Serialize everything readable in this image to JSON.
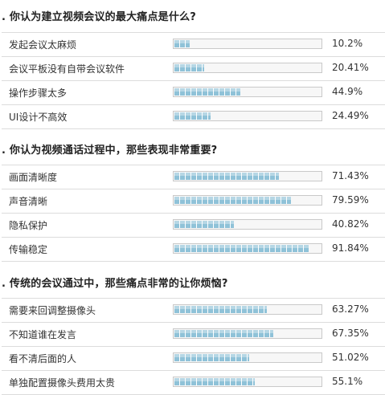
{
  "questions": [
    {
      "title": ". 你认为建立视频会议的最大痛点是什么?",
      "options": [
        {
          "label": "发起会议太麻烦",
          "percent_text": "10.2%",
          "percent": 10.2
        },
        {
          "label": "会议平板没有自带会议软件",
          "percent_text": "20.41%",
          "percent": 20.41
        },
        {
          "label": "操作步骤太多",
          "percent_text": "44.9%",
          "percent": 44.9
        },
        {
          "label": "UI设计不高效",
          "percent_text": "24.49%",
          "percent": 24.49
        }
      ]
    },
    {
      "title": ". 你认为视频通话过程中，那些表现非常重要?",
      "options": [
        {
          "label": "画面清晰度",
          "percent_text": "71.43%",
          "percent": 71.43
        },
        {
          "label": "声音清晰",
          "percent_text": "79.59%",
          "percent": 79.59
        },
        {
          "label": "隐私保护",
          "percent_text": "40.82%",
          "percent": 40.82
        },
        {
          "label": "传输稳定",
          "percent_text": "91.84%",
          "percent": 91.84
        }
      ]
    },
    {
      "title": ". 传统的会议通过中，那些痛点非常的让你烦恼?",
      "options": [
        {
          "label": "需要来回调整摄像头",
          "percent_text": "63.27%",
          "percent": 63.27
        },
        {
          "label": "不知道谁在发言",
          "percent_text": "67.35%",
          "percent": 67.35
        },
        {
          "label": "看不清后面的人",
          "percent_text": "51.02%",
          "percent": 51.02
        },
        {
          "label": "单独配置摄像头费用太贵",
          "percent_text": "55.1%",
          "percent": 55.1
        }
      ]
    }
  ],
  "colors": {
    "bar_fill": "#8fc2d8",
    "bar_border": "#c9c9c9",
    "row_divider": "#dcdcdc"
  }
}
